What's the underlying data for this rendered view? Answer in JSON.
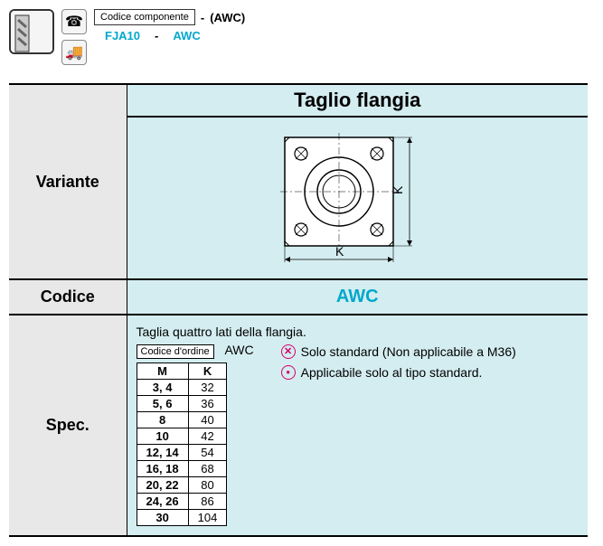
{
  "header": {
    "code_box_label": "Codice componente",
    "dash1": "-",
    "awc_paren": "(AWC)",
    "code_value": "FJA10",
    "dash2": "-",
    "awc_value": "AWC"
  },
  "table": {
    "col_header": "Taglio flangia",
    "variante_label": "Variante",
    "codice_label": "Codice",
    "codice_value": "AWC",
    "spec_label": "Spec.",
    "spec_title": "Taglia quattro lati della flangia.",
    "order_box": "Codice d'ordine",
    "awc_text": "AWC",
    "mk_header_m": "M",
    "mk_header_k": "K",
    "mk_rows": [
      {
        "m": "3, 4",
        "k": "32"
      },
      {
        "m": "5, 6",
        "k": "36"
      },
      {
        "m": "8",
        "k": "40"
      },
      {
        "m": "10",
        "k": "42"
      },
      {
        "m": "12, 14",
        "k": "54"
      },
      {
        "m": "16, 18",
        "k": "68"
      },
      {
        "m": "20, 22",
        "k": "80"
      },
      {
        "m": "24, 26",
        "k": "86"
      },
      {
        "m": "30",
        "k": "104"
      }
    ],
    "note1": "Solo standard (Non applicabile a M36)",
    "note2": "Applicabile solo al tipo standard.",
    "k_label_h": "K",
    "k_label_v": "K"
  },
  "style": {
    "cyan": "#00a8cc",
    "magenta": "#d6006c",
    "bg_right": "#d4edf0",
    "bg_left": "#e8e8e8"
  }
}
